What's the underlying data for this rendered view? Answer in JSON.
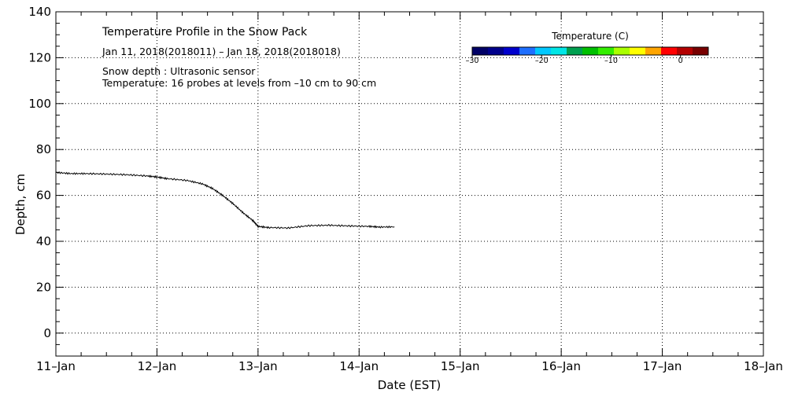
{
  "chart_data": {
    "type": "line",
    "title": "Temperature Profile in the Snow Pack",
    "subtitle": "Jan 11, 2018(2018011) – Jan 18, 2018(2018018)",
    "notes": [
      "Snow depth : Ultrasonic sensor",
      "Temperature: 16 probes at levels from –10 cm to 90 cm"
    ],
    "xlabel": "Date (EST)",
    "ylabel": "Depth, cm",
    "x_tick_labels": [
      "11–Jan",
      "12–Jan",
      "13–Jan",
      "14–Jan",
      "15–Jan",
      "16–Jan",
      "17–Jan",
      "18–Jan"
    ],
    "y_ticks": [
      0,
      20,
      40,
      60,
      80,
      100,
      120,
      140
    ],
    "xlim_days": [
      0,
      7
    ],
    "ylim": [
      -10,
      140
    ],
    "grid": true,
    "series": [
      {
        "x_days": [
          0.0,
          0.15,
          0.3,
          0.5,
          0.7,
          0.9,
          1.0,
          1.1,
          1.3,
          1.45,
          1.55,
          1.65,
          1.75,
          1.85,
          1.95,
          2.0,
          2.1,
          2.3,
          2.5,
          2.7,
          2.9,
          3.1,
          3.2,
          3.35
        ],
        "values": [
          70.0,
          69.5,
          69.5,
          69.3,
          69.0,
          68.5,
          68.0,
          67.3,
          66.5,
          65.0,
          63.0,
          60.0,
          56.5,
          52.5,
          49.0,
          46.5,
          46.0,
          45.8,
          46.8,
          47.0,
          46.7,
          46.5,
          46.2,
          46.3
        ],
        "color": "#000000"
      }
    ],
    "colorbar": {
      "title": "Temperature (C)",
      "tick_labels": [
        "–30",
        "–20",
        "–10",
        "0"
      ],
      "tick_values": [
        -30,
        -20,
        -10,
        0
      ],
      "range": [
        -30,
        4
      ],
      "colors": [
        "#000066",
        "#00008b",
        "#0000cd",
        "#1e6fff",
        "#00c8ff",
        "#00e6e6",
        "#00a050",
        "#00c000",
        "#33ee00",
        "#aaff00",
        "#ffff00",
        "#ffa500",
        "#ff0000",
        "#b40000",
        "#780000"
      ]
    }
  }
}
